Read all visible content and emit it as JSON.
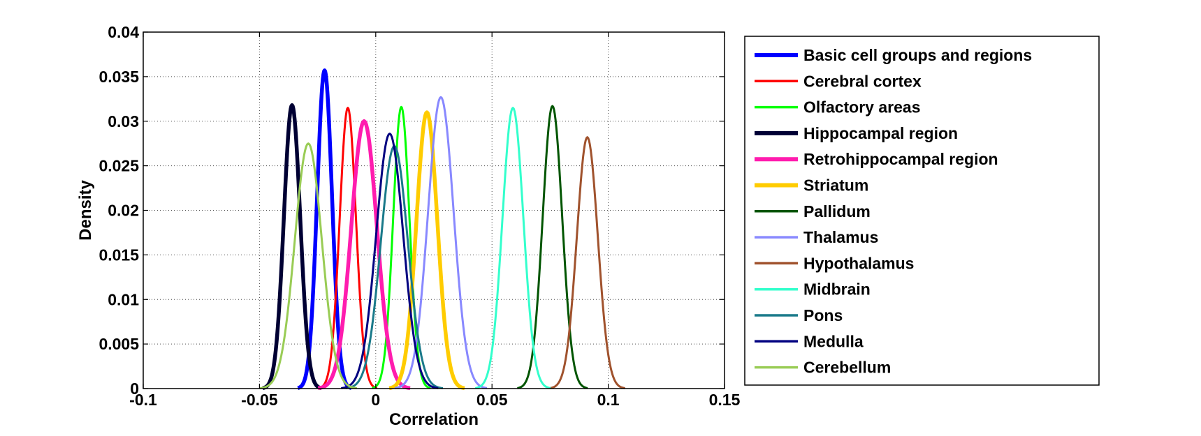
{
  "chart_data": {
    "type": "line",
    "title": "",
    "xlabel": "Correlation",
    "ylabel": "Density",
    "xlim": [
      -0.1,
      0.15
    ],
    "ylim": [
      0,
      0.04
    ],
    "x_ticks": [
      -0.1,
      -0.05,
      0,
      0.05,
      0.1,
      0.15
    ],
    "x_tick_labels": [
      "-0.1",
      "-0.05",
      "0",
      "0.05",
      "0.1",
      "0.15"
    ],
    "y_ticks": [
      0,
      0.005,
      0.01,
      0.015,
      0.02,
      0.025,
      0.03,
      0.035,
      0.04
    ],
    "y_tick_labels": [
      "0",
      "0.005",
      "0.01",
      "0.015",
      "0.02",
      "0.025",
      "0.03",
      "0.035",
      "0.04"
    ],
    "grid": true,
    "legend_position": "outside-right",
    "series": [
      {
        "name": "Basic cell groups and regions",
        "color": "#0000ff",
        "width": "thick",
        "peak_x": -0.022,
        "peak_y": 0.0357,
        "spread": 0.0032
      },
      {
        "name": "Cerebral cortex",
        "color": "#ff0000",
        "width": "thin",
        "peak_x": -0.012,
        "peak_y": 0.0315,
        "spread": 0.0035
      },
      {
        "name": "Olfactory areas",
        "color": "#00ff00",
        "width": "thin",
        "peak_x": 0.011,
        "peak_y": 0.0316,
        "spread": 0.0035
      },
      {
        "name": "Hippocampal region",
        "color": "#000033",
        "width": "thick",
        "peak_x": -0.036,
        "peak_y": 0.0318,
        "spread": 0.0035
      },
      {
        "name": "Retrohippocampal region",
        "color": "#ff1cae",
        "width": "thick",
        "peak_x": -0.005,
        "peak_y": 0.03,
        "spread": 0.0055
      },
      {
        "name": "Striatum",
        "color": "#ffcc00",
        "width": "thick",
        "peak_x": 0.022,
        "peak_y": 0.031,
        "spread": 0.0045
      },
      {
        "name": "Pallidum",
        "color": "#005500",
        "width": "thin",
        "peak_x": 0.076,
        "peak_y": 0.0317,
        "spread": 0.0042
      },
      {
        "name": "Thalamus",
        "color": "#8888ff",
        "width": "thin",
        "peak_x": 0.028,
        "peak_y": 0.0327,
        "spread": 0.0055
      },
      {
        "name": "Hypothalamus",
        "color": "#a0522d",
        "width": "thin",
        "peak_x": 0.091,
        "peak_y": 0.0282,
        "spread": 0.0045
      },
      {
        "name": "Midbrain",
        "color": "#33ffcc",
        "width": "thin",
        "peak_x": 0.059,
        "peak_y": 0.0315,
        "spread": 0.0045
      },
      {
        "name": "Pons",
        "color": "#1a7a8a",
        "width": "thin",
        "peak_x": 0.008,
        "peak_y": 0.0272,
        "spread": 0.0058
      },
      {
        "name": "Medulla",
        "color": "#000080",
        "width": "thin",
        "peak_x": 0.006,
        "peak_y": 0.0286,
        "spread": 0.0058
      },
      {
        "name": "Cerebellum",
        "color": "#99cc55",
        "width": "thin",
        "peak_x": -0.029,
        "peak_y": 0.0275,
        "spread": 0.0058
      }
    ]
  }
}
